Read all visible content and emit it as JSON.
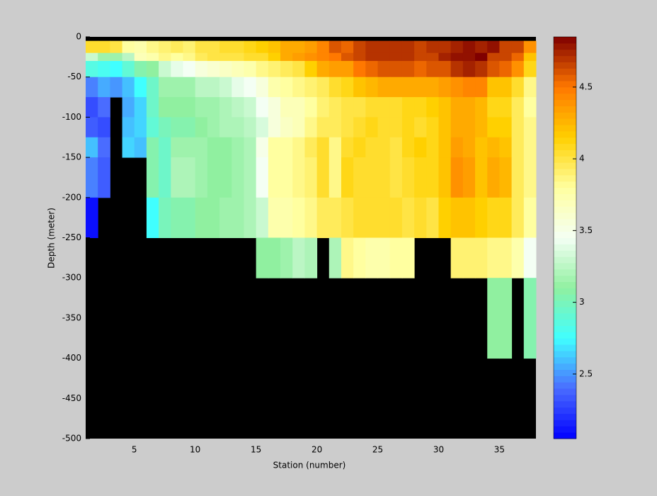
{
  "chart_data": {
    "type": "heatmap",
    "xlabel": "Station (number)",
    "ylabel": "Depth (meter)",
    "xlim": [
      1,
      38
    ],
    "ylim": [
      -500,
      0
    ],
    "xticks": [
      5,
      10,
      15,
      20,
      25,
      30,
      35
    ],
    "yticks": [
      0,
      -50,
      -100,
      -150,
      -200,
      -250,
      -300,
      -350,
      -400,
      -450,
      -500
    ],
    "background": "#000000",
    "x_edges": [
      1,
      2,
      3,
      4,
      5,
      6,
      7,
      8,
      9,
      10,
      11,
      12,
      13,
      14,
      15,
      16,
      17,
      18,
      19,
      20,
      21,
      22,
      23,
      24,
      25,
      26,
      27,
      28,
      29,
      30,
      31,
      32,
      33,
      34,
      35,
      36,
      37,
      38
    ],
    "y_edges": [
      -5,
      -20,
      -30,
      -50,
      -75,
      -100,
      -125,
      -150,
      -200,
      -250,
      -300,
      -400
    ],
    "z": [
      [
        4.05,
        4.05,
        4.0,
        3.8,
        3.75,
        3.85,
        3.9,
        3.95,
        3.9,
        4.0,
        4.0,
        4.05,
        4.05,
        4.1,
        4.15,
        4.2,
        4.3,
        4.3,
        4.35,
        4.45,
        4.6,
        4.55,
        4.65,
        4.7,
        4.7,
        4.7,
        4.7,
        4.65,
        4.7,
        4.7,
        4.75,
        4.8,
        4.75,
        4.8,
        4.65,
        4.65,
        4.4
      ],
      [
        3.3,
        3.15,
        3.15,
        3.25,
        3.7,
        3.75,
        3.85,
        3.8,
        3.85,
        3.95,
        4.0,
        4.0,
        4.0,
        4.05,
        4.05,
        4.15,
        4.3,
        4.35,
        4.4,
        4.45,
        4.5,
        4.6,
        4.65,
        4.7,
        4.7,
        4.7,
        4.7,
        4.65,
        4.65,
        4.75,
        4.8,
        4.8,
        4.85,
        4.65,
        4.65,
        4.55,
        4.2
      ],
      [
        2.85,
        2.8,
        2.75,
        2.9,
        3.05,
        3.1,
        3.3,
        3.4,
        3.45,
        3.55,
        3.6,
        3.65,
        3.7,
        3.75,
        3.85,
        3.9,
        3.95,
        4.0,
        4.15,
        4.3,
        4.35,
        4.35,
        4.5,
        4.55,
        4.6,
        4.6,
        4.6,
        4.55,
        4.6,
        4.6,
        4.7,
        4.75,
        4.7,
        4.6,
        4.55,
        4.4,
        4.1
      ],
      [
        2.45,
        2.55,
        2.5,
        2.6,
        2.75,
        2.95,
        3.15,
        3.15,
        3.15,
        3.25,
        3.25,
        3.3,
        3.4,
        3.45,
        3.55,
        3.75,
        3.8,
        3.85,
        3.9,
        3.95,
        4.05,
        4.1,
        4.2,
        4.25,
        4.3,
        4.3,
        4.3,
        4.3,
        4.3,
        4.35,
        4.4,
        4.45,
        4.45,
        4.2,
        4.2,
        4.05,
        3.85
      ],
      [
        2.3,
        2.4,
        null,
        2.55,
        2.65,
        2.95,
        3.1,
        3.1,
        3.1,
        3.15,
        3.15,
        3.2,
        3.25,
        3.3,
        3.45,
        3.55,
        3.7,
        3.7,
        3.8,
        3.9,
        3.95,
        4.0,
        4.0,
        4.05,
        4.05,
        4.05,
        4.1,
        4.1,
        4.15,
        4.2,
        4.3,
        4.3,
        4.25,
        4.1,
        4.1,
        3.95,
        3.8
      ],
      [
        2.35,
        2.3,
        null,
        2.6,
        2.65,
        2.9,
        3.0,
        3.05,
        3.05,
        3.1,
        3.15,
        3.2,
        3.2,
        3.25,
        3.35,
        3.55,
        3.65,
        3.7,
        3.85,
        3.95,
        3.95,
        4.0,
        4.05,
        4.1,
        4.05,
        4.05,
        4.1,
        4.05,
        4.1,
        4.2,
        4.3,
        4.3,
        4.25,
        4.15,
        4.15,
        3.95,
        3.85
      ],
      [
        2.6,
        2.4,
        null,
        2.65,
        2.6,
        3.05,
        2.95,
        3.15,
        3.15,
        3.15,
        3.1,
        3.1,
        3.15,
        3.2,
        3.5,
        3.8,
        3.8,
        3.85,
        3.95,
        4.05,
        3.85,
        4.05,
        4.1,
        4.05,
        4.05,
        4.0,
        4.1,
        4.15,
        4.1,
        4.2,
        4.35,
        4.3,
        4.2,
        4.25,
        4.2,
        3.95,
        3.85
      ],
      [
        2.45,
        2.35,
        null,
        null,
        null,
        3.05,
        2.95,
        3.2,
        3.2,
        3.15,
        3.1,
        3.1,
        3.15,
        3.2,
        3.45,
        3.8,
        3.8,
        3.85,
        3.9,
        4.05,
        3.85,
        4.1,
        4.05,
        4.05,
        4.05,
        4.0,
        4.05,
        4.1,
        4.1,
        4.2,
        4.4,
        4.35,
        4.2,
        4.3,
        4.25,
        3.95,
        3.85
      ],
      [
        2.1,
        null,
        null,
        null,
        null,
        2.75,
        3.0,
        3.05,
        3.05,
        3.1,
        3.1,
        3.15,
        3.15,
        3.2,
        3.3,
        3.75,
        3.75,
        3.8,
        3.85,
        3.95,
        3.95,
        4.0,
        4.05,
        4.05,
        4.05,
        4.05,
        4.0,
        4.05,
        4.0,
        4.15,
        4.2,
        4.2,
        4.15,
        4.1,
        4.1,
        3.95,
        3.8
      ],
      [
        null,
        null,
        null,
        null,
        null,
        null,
        null,
        null,
        null,
        null,
        null,
        null,
        null,
        null,
        3.1,
        3.1,
        3.15,
        3.25,
        3.2,
        null,
        3.2,
        3.85,
        3.8,
        3.75,
        3.75,
        3.8,
        3.8,
        null,
        null,
        null,
        3.9,
        3.9,
        3.9,
        3.85,
        3.85,
        3.75,
        3.45
      ],
      [
        null,
        null,
        null,
        null,
        null,
        null,
        null,
        null,
        null,
        null,
        null,
        null,
        null,
        null,
        null,
        null,
        null,
        null,
        null,
        null,
        null,
        null,
        null,
        null,
        null,
        null,
        null,
        null,
        null,
        null,
        null,
        null,
        null,
        3.1,
        3.1,
        null,
        3.05
      ]
    ],
    "colorbar": {
      "clim": [
        2.05,
        4.85
      ],
      "ticks": [
        2.5,
        3,
        3.5,
        4,
        4.5
      ],
      "colormap": [
        "#0000ff",
        "#4a6cff",
        "#40ffff",
        "#90f0a0",
        "#f4fff4",
        "#ffffa0",
        "#ffd000",
        "#ff7800",
        "#800000"
      ]
    }
  }
}
